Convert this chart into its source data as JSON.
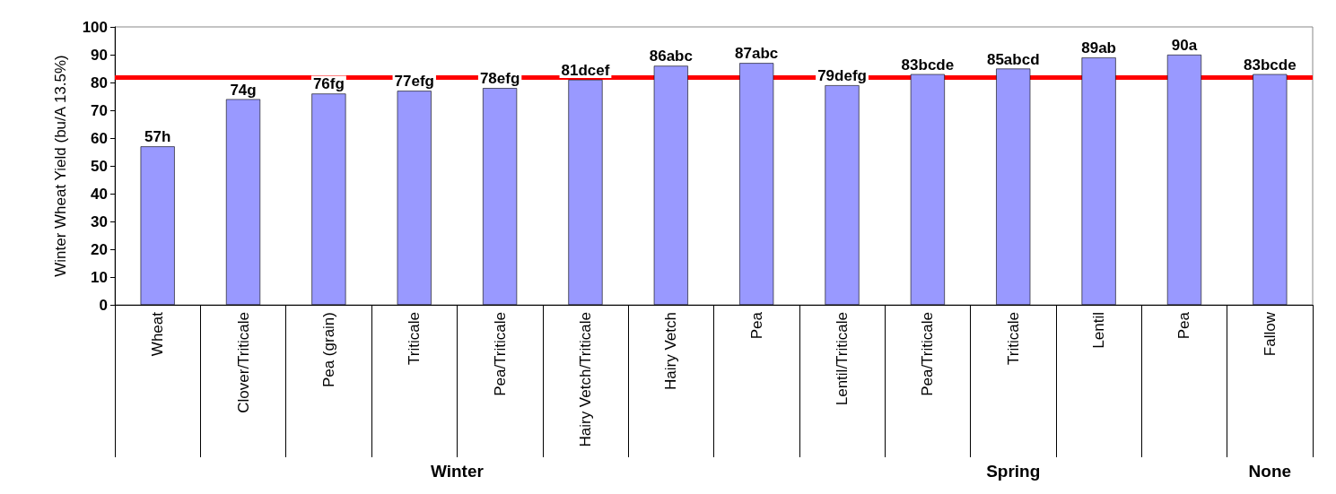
{
  "chart_data": {
    "type": "bar",
    "ylabel": "Winter Wheat Yield (bu/A 13.5%)",
    "categories": [
      "Wheat",
      "Clover/Triticale",
      "Pea (grain)",
      "Triticale",
      "Pea/Triticale",
      "Hairy Vetch/Triticale",
      "Hairy Vetch",
      "Pea",
      "Lentil/Triticale",
      "Pea/Triticale",
      "Triticale",
      "Lentil",
      "Pea",
      "Fallow"
    ],
    "values": [
      57,
      74,
      76,
      77,
      78,
      81,
      86,
      87,
      79,
      83,
      85,
      89,
      90,
      83
    ],
    "value_labels": [
      "57h",
      "74g",
      "76fg",
      "77efg",
      "78efg",
      "81dcef",
      "86abc",
      "87abc",
      "79defg",
      "83bcde",
      "85abcd",
      "89ab",
      "90a",
      "83bcde"
    ],
    "color": "#9999ff",
    "ylim": [
      0,
      100
    ],
    "yticks": [
      0,
      10,
      20,
      30,
      40,
      50,
      60,
      70,
      80,
      90,
      100
    ],
    "ref_lines": [
      {
        "axis": "y",
        "value": 82,
        "color": "#ff0000"
      }
    ],
    "annotations": [
      "Winter",
      "Spring",
      "None"
    ],
    "grid": false
  }
}
